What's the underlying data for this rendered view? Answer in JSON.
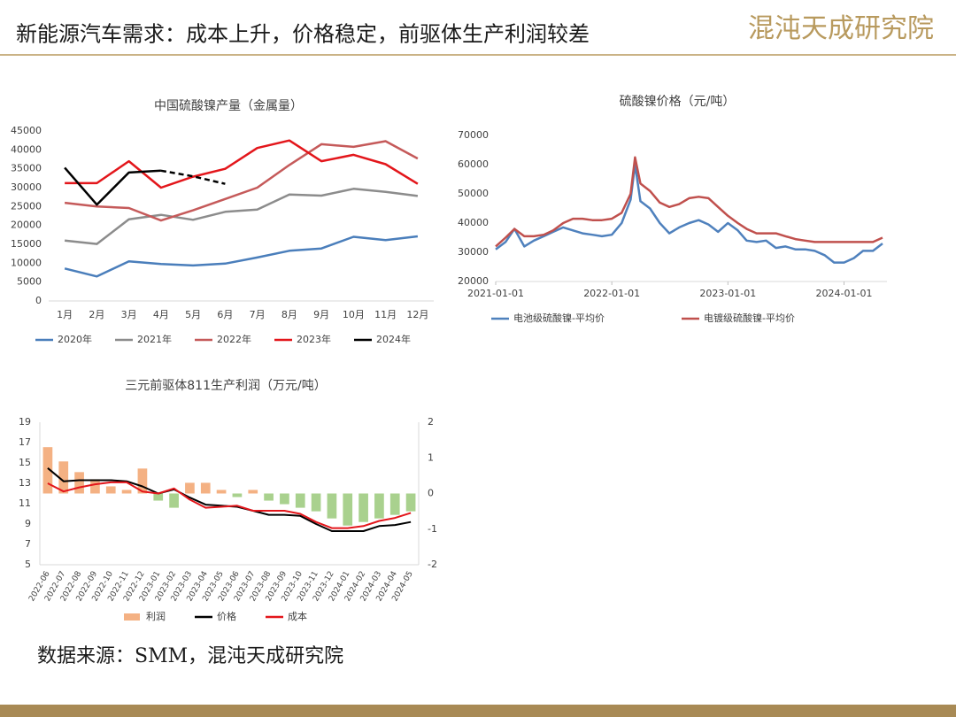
{
  "header": {
    "title": "新能源汽车需求：成本上升，价格稳定，前驱体生产利润较差",
    "logo": "混沌天成研究院"
  },
  "source": "数据来源：SMM，混沌天成研究院",
  "chart_data": [
    {
      "type": "line",
      "title": "中国硫酸镍产量（金属量）",
      "categories": [
        "1月",
        "2月",
        "3月",
        "4月",
        "5月",
        "6月",
        "7月",
        "8月",
        "9月",
        "10月",
        "11月",
        "12月"
      ],
      "ylim": [
        0,
        45000
      ],
      "yticks": [
        0,
        5000,
        10000,
        15000,
        20000,
        25000,
        30000,
        35000,
        40000,
        45000
      ],
      "legend": "bottom",
      "series": [
        {
          "name": "2020年",
          "color": "#4a7ebb",
          "values": [
            8600,
            6500,
            10500,
            9800,
            9400,
            9900,
            11500,
            13300,
            13900,
            17000,
            16100,
            17100
          ]
        },
        {
          "name": "2021年",
          "color": "#8c8c8c",
          "values": [
            16000,
            15100,
            21600,
            22800,
            21500,
            23600,
            24200,
            28200,
            27900,
            29700,
            28900,
            27800
          ]
        },
        {
          "name": "2022年",
          "color": "#c55a5a",
          "values": [
            26000,
            25000,
            24600,
            21300,
            24000,
            27000,
            30000,
            36000,
            41500,
            40800,
            42300,
            37700
          ]
        },
        {
          "name": "2023年",
          "color": "#e3161b",
          "values": [
            31200,
            31200,
            37000,
            30000,
            32900,
            35000,
            40500,
            42500,
            37000,
            38700,
            36200,
            31000
          ]
        },
        {
          "name": "2024年",
          "color": "#000000",
          "dash_from": 4,
          "values": [
            35300,
            25500,
            34000,
            34500,
            33000,
            31000,
            null,
            null,
            null,
            null,
            null,
            null
          ]
        }
      ]
    },
    {
      "type": "line",
      "title": "硫酸镍价格（元/吨）",
      "x": [
        "2021-01-01",
        "2021-02-01",
        "2021-03-01",
        "2021-04-01",
        "2021-05-01",
        "2021-06-01",
        "2021-07-01",
        "2021-08-01",
        "2021-09-01",
        "2021-10-01",
        "2021-11-01",
        "2021-12-01",
        "2022-01-01",
        "2022-02-01",
        "2022-03-01",
        "2022-03-15",
        "2022-04-01",
        "2022-05-01",
        "2022-06-01",
        "2022-07-01",
        "2022-08-01",
        "2022-09-01",
        "2022-10-01",
        "2022-11-01",
        "2022-12-01",
        "2023-01-01",
        "2023-02-01",
        "2023-03-01",
        "2023-04-01",
        "2023-05-01",
        "2023-06-01",
        "2023-07-01",
        "2023-08-01",
        "2023-09-01",
        "2023-10-01",
        "2023-11-01",
        "2023-12-01",
        "2024-01-01",
        "2024-02-01",
        "2024-03-01",
        "2024-04-01",
        "2024-05-01"
      ],
      "xlim": [
        "2021-01-01",
        "2024-05-15"
      ],
      "xticks": [
        "2021-01-01",
        "2022-01-01",
        "2023-01-01",
        "2024-01-01"
      ],
      "ylim": [
        20000,
        70000
      ],
      "yticks": [
        20000,
        30000,
        40000,
        50000,
        60000,
        70000
      ],
      "legend": "bottom",
      "series": [
        {
          "name": "电池级硫酸镍-平均价",
          "color": "#4f81bd",
          "values": [
            31000,
            33500,
            38000,
            32000,
            34000,
            35500,
            37000,
            38500,
            37500,
            36500,
            36000,
            35500,
            36000,
            40000,
            48000,
            60000,
            47500,
            45000,
            40000,
            36500,
            38500,
            40000,
            41000,
            39500,
            37000,
            40000,
            37500,
            34000,
            33500,
            34000,
            31500,
            32000,
            31000,
            31000,
            30500,
            29000,
            26500,
            26500,
            28000,
            30500,
            30500,
            33000
          ]
        },
        {
          "name": "电镀级硫酸镍-平均价",
          "color": "#c0504d",
          "values": [
            32000,
            35000,
            38000,
            35500,
            35500,
            36000,
            37500,
            40000,
            41500,
            41500,
            41000,
            41000,
            41500,
            43500,
            50000,
            62500,
            53500,
            51000,
            47000,
            45500,
            46500,
            48500,
            49000,
            48500,
            45500,
            42500,
            40000,
            38000,
            36500,
            36500,
            36500,
            35500,
            34500,
            34000,
            33500,
            33500,
            33500,
            33500,
            33500,
            33500,
            33500,
            35000
          ]
        }
      ]
    },
    {
      "type": "combo",
      "title": "三元前驱体811生产利润（万元/吨）",
      "categories": [
        "2022-06",
        "2022-07",
        "2022-08",
        "2022-09",
        "2022-10",
        "2022-11",
        "2022-12",
        "2023-01",
        "2023-02",
        "2023-03",
        "2023-04",
        "2023-05",
        "2023-06",
        "2023-07",
        "2023-08",
        "2023-09",
        "2023-10",
        "2023-11",
        "2023-12",
        "2024-01",
        "2024-02",
        "2024-03",
        "2024-04",
        "2024-05"
      ],
      "ylim": [
        5,
        19
      ],
      "yticks": [
        5,
        7,
        9,
        11,
        13,
        15,
        17,
        19
      ],
      "y2lim": [
        -2,
        2
      ],
      "y2ticks": [
        -2,
        -1,
        0,
        1,
        2
      ],
      "legend": "bottom",
      "series": [
        {
          "name": "利润",
          "type": "bar",
          "axis": "y2",
          "color": "#f4b183",
          "values": [
            1.3,
            0.9,
            0.6,
            0.4,
            0.2,
            0.1,
            0.7,
            -0.2,
            -0.4,
            0.3,
            0.3,
            0.1,
            -0.1,
            0.1,
            -0.2,
            -0.3,
            -0.4,
            -0.5,
            -0.7,
            -0.9,
            -0.8,
            -0.7,
            -0.6,
            -0.5
          ]
        },
        {
          "name": "价格",
          "type": "line",
          "color": "#000000",
          "values": [
            14.5,
            13.2,
            13.3,
            13.3,
            13.3,
            13.2,
            12.7,
            12.0,
            12.4,
            11.6,
            10.9,
            10.8,
            10.7,
            10.3,
            9.9,
            9.9,
            9.8,
            9.0,
            8.3,
            8.3,
            8.3,
            8.8,
            8.9,
            9.2
          ]
        },
        {
          "name": "成本",
          "type": "line",
          "color": "#e3161b",
          "values": [
            13.0,
            12.2,
            12.6,
            12.9,
            13.1,
            13.1,
            12.2,
            12.0,
            12.5,
            11.4,
            10.6,
            10.7,
            10.8,
            10.3,
            10.3,
            10.3,
            10.0,
            9.2,
            8.6,
            8.6,
            8.8,
            9.3,
            9.6,
            10.1
          ]
        }
      ]
    }
  ]
}
